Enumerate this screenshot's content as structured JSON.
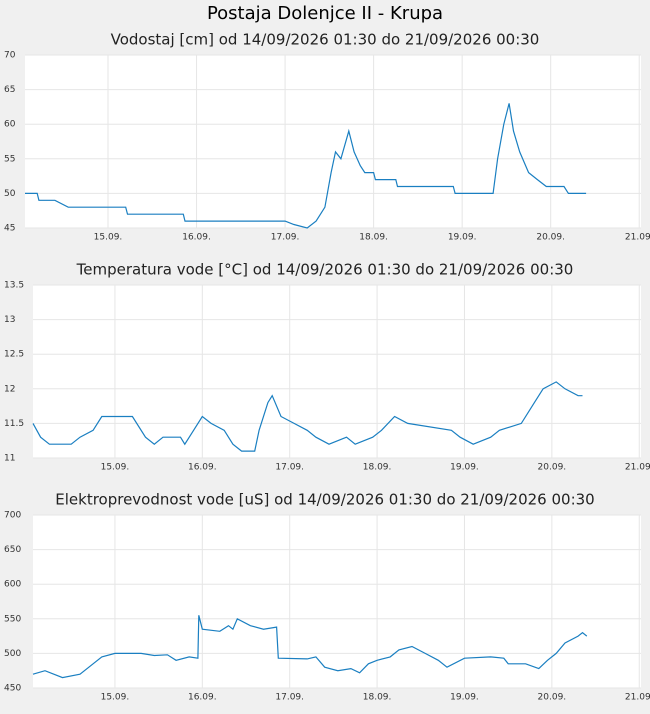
{
  "title": "Postaja Dolenjce II - Krupa",
  "chart_data": [
    {
      "type": "line",
      "title": "Vodostaj [cm] od 14/09/2026 01:30 do 21/09/2026 00:30",
      "xlim": [
        14.0625,
        21.02
      ],
      "ylim": [
        45,
        70
      ],
      "yticks": [
        45,
        50,
        55,
        60,
        65,
        70
      ],
      "xticks": [
        {
          "value": 15,
          "label": "15.09."
        },
        {
          "value": 16,
          "label": "16.09."
        },
        {
          "value": 17,
          "label": "17.09."
        },
        {
          "value": 18,
          "label": "18.09."
        },
        {
          "value": 19,
          "label": "19.09."
        },
        {
          "value": 20,
          "label": "20.09."
        },
        {
          "value": 21,
          "label": "21.09."
        }
      ],
      "grid": true,
      "x": [
        14.0625,
        14.2,
        14.22,
        14.4,
        14.55,
        15.2,
        15.22,
        15.85,
        15.87,
        17.0,
        17.1,
        17.25,
        17.35,
        17.45,
        17.52,
        17.57,
        17.63,
        17.72,
        17.78,
        17.85,
        17.9,
        18.0,
        18.02,
        18.25,
        18.27,
        18.9,
        18.92,
        19.35,
        19.4,
        19.47,
        19.53,
        19.58,
        19.65,
        19.75,
        19.85,
        19.95,
        20.15,
        20.2,
        20.4
      ],
      "series": [
        {
          "color": "#1a7fc1",
          "values": [
            50,
            50,
            49,
            49,
            48,
            48,
            47,
            47,
            46,
            46,
            45.5,
            45,
            46,
            48,
            53,
            56,
            55,
            59,
            56,
            54,
            53,
            53,
            52,
            52,
            51,
            51,
            50,
            50,
            55,
            60,
            63,
            59,
            56,
            53,
            52,
            51,
            51,
            50,
            50
          ]
        }
      ]
    },
    {
      "type": "line",
      "title": "Temperatura vode [°C] od 14/09/2026 01:30 do 21/09/2026 00:30",
      "xlim": [
        14.0625,
        21.02
      ],
      "ylim": [
        11,
        13.5
      ],
      "yticks": [
        11,
        11.5,
        12,
        12.5,
        13,
        13.5
      ],
      "xticks": [
        {
          "value": 15,
          "label": "15.09."
        },
        {
          "value": 16,
          "label": "16.09."
        },
        {
          "value": 17,
          "label": "17.09."
        },
        {
          "value": 18,
          "label": "18.09."
        },
        {
          "value": 19,
          "label": "19.09."
        },
        {
          "value": 20,
          "label": "20.09."
        },
        {
          "value": 21,
          "label": "21.09."
        }
      ],
      "grid": true,
      "x": [
        14.0625,
        14.15,
        14.25,
        14.5,
        14.6,
        14.75,
        14.85,
        15.2,
        15.35,
        15.45,
        15.55,
        15.75,
        15.8,
        15.9,
        16.0,
        16.1,
        16.25,
        16.35,
        16.45,
        16.6,
        16.65,
        16.75,
        16.8,
        16.9,
        17.05,
        17.2,
        17.3,
        17.45,
        17.65,
        17.75,
        17.95,
        18.05,
        18.2,
        18.35,
        18.85,
        18.95,
        19.1,
        19.3,
        19.4,
        19.65,
        19.8,
        19.9,
        20.05,
        20.15,
        20.3,
        20.35
      ],
      "series": [
        {
          "color": "#1a7fc1",
          "values": [
            11.5,
            11.3,
            11.2,
            11.2,
            11.3,
            11.4,
            11.6,
            11.6,
            11.3,
            11.2,
            11.3,
            11.3,
            11.2,
            11.4,
            11.6,
            11.5,
            11.4,
            11.2,
            11.1,
            11.1,
            11.4,
            11.8,
            11.9,
            11.6,
            11.5,
            11.4,
            11.3,
            11.2,
            11.3,
            11.2,
            11.3,
            11.4,
            11.6,
            11.5,
            11.4,
            11.3,
            11.2,
            11.3,
            11.4,
            11.5,
            11.8,
            12.0,
            12.1,
            12.0,
            11.9,
            11.9
          ]
        }
      ]
    },
    {
      "type": "line",
      "title": "Elektroprevodnost vode [uS] od 14/09/2026 01:30 do 21/09/2026 00:30",
      "xlim": [
        14.0625,
        21.02
      ],
      "ylim": [
        450,
        700
      ],
      "yticks": [
        450,
        500,
        550,
        600,
        650,
        700
      ],
      "xticks": [
        {
          "value": 15,
          "label": "15.09."
        },
        {
          "value": 16,
          "label": "16.09."
        },
        {
          "value": 17,
          "label": "17.09."
        },
        {
          "value": 18,
          "label": "18.09."
        },
        {
          "value": 19,
          "label": "19.09."
        },
        {
          "value": 20,
          "label": "20.09."
        },
        {
          "value": 21,
          "label": "21.09."
        }
      ],
      "grid": true,
      "x": [
        14.0625,
        14.2,
        14.4,
        14.6,
        14.75,
        14.85,
        15.0,
        15.3,
        15.45,
        15.6,
        15.7,
        15.85,
        15.95,
        15.96,
        16.0,
        16.2,
        16.3,
        16.35,
        16.4,
        16.55,
        16.7,
        16.85,
        16.87,
        17.2,
        17.3,
        17.4,
        17.55,
        17.7,
        17.8,
        17.9,
        18.0,
        18.15,
        18.25,
        18.4,
        18.55,
        18.7,
        18.8,
        19.0,
        19.3,
        19.45,
        19.5,
        19.7,
        19.85,
        19.95,
        20.05,
        20.15,
        20.3,
        20.35,
        20.4
      ],
      "series": [
        {
          "color": "#1a7fc1",
          "values": [
            470,
            475,
            465,
            470,
            485,
            495,
            500,
            500,
            497,
            498,
            490,
            495,
            493,
            555,
            535,
            532,
            540,
            535,
            550,
            540,
            535,
            538,
            493,
            492,
            495,
            480,
            475,
            478,
            472,
            485,
            490,
            495,
            505,
            510,
            500,
            490,
            480,
            493,
            495,
            493,
            485,
            485,
            478,
            490,
            500,
            515,
            525,
            530,
            525
          ]
        }
      ]
    }
  ]
}
